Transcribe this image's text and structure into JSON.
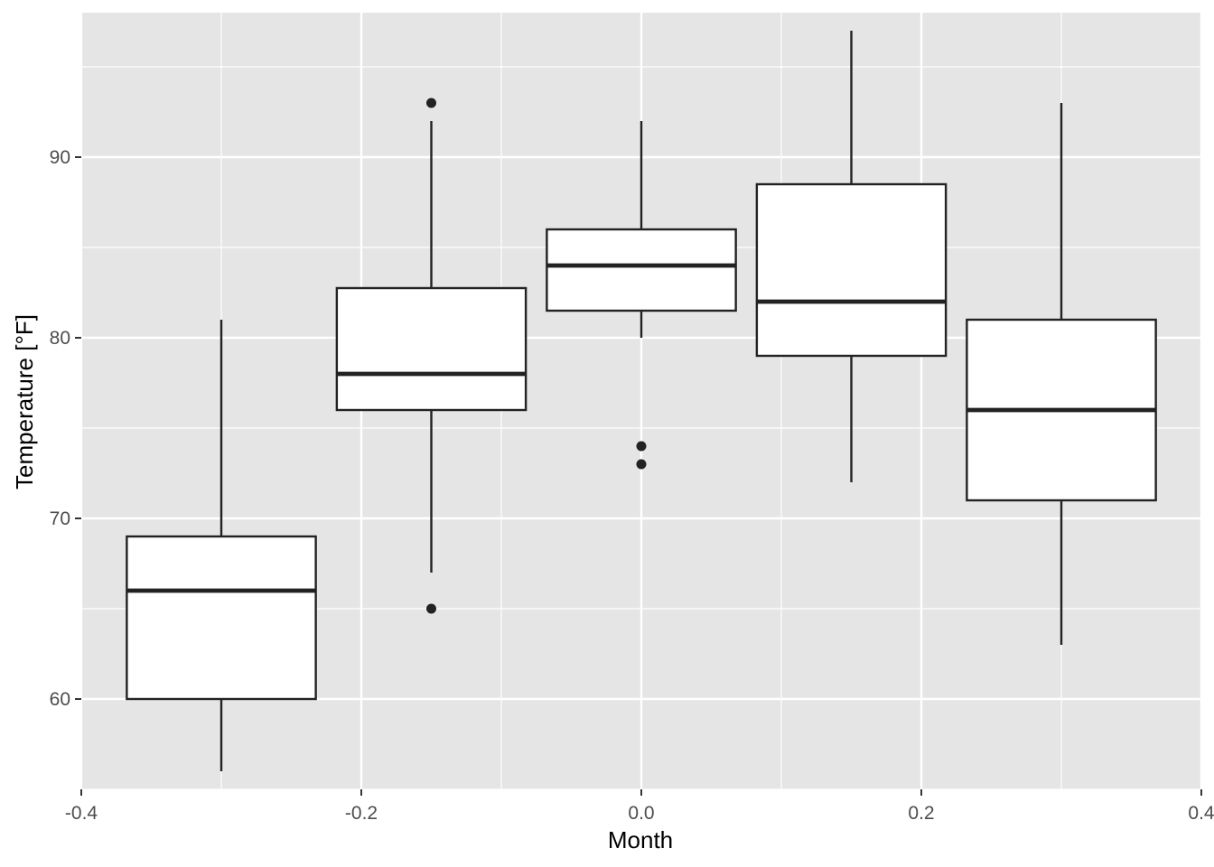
{
  "chart_data": {
    "type": "box",
    "xlabel": "Month",
    "ylabel": "Temperature [°F]",
    "xlim": [
      -0.4,
      0.4
    ],
    "ylim": [
      55,
      98
    ],
    "x_ticks": [
      -0.4,
      -0.2,
      0.0,
      0.2,
      0.4
    ],
    "x_tick_labels": [
      "-0.4",
      "-0.2",
      "0.0",
      "0.2",
      "0.4"
    ],
    "y_ticks": [
      60,
      70,
      80,
      90
    ],
    "y_tick_labels": [
      "60",
      "70",
      "80",
      "90"
    ],
    "grid": true,
    "box_width": 0.135,
    "boxes": [
      {
        "x": -0.3,
        "q1": 60,
        "median": 66,
        "q3": 69,
        "whisker_low": 56,
        "whisker_high": 81,
        "outliers": []
      },
      {
        "x": -0.15,
        "q1": 76,
        "median": 78,
        "q3": 82.75,
        "whisker_low": 67,
        "whisker_high": 92,
        "outliers": [
          93,
          65
        ]
      },
      {
        "x": 0.0,
        "q1": 81.5,
        "median": 84,
        "q3": 86,
        "whisker_low": 80,
        "whisker_high": 92,
        "outliers": [
          74,
          73
        ]
      },
      {
        "x": 0.15,
        "q1": 79,
        "median": 82,
        "q3": 88.5,
        "whisker_low": 72,
        "whisker_high": 97,
        "outliers": []
      },
      {
        "x": 0.3,
        "q1": 71,
        "median": 76,
        "q3": 81,
        "whisker_low": 63,
        "whisker_high": 93,
        "outliers": []
      }
    ],
    "colors": {
      "panel": "#e5e5e5",
      "grid": "#ffffff",
      "box_fill": "#ffffff",
      "stroke": "#222222"
    }
  }
}
